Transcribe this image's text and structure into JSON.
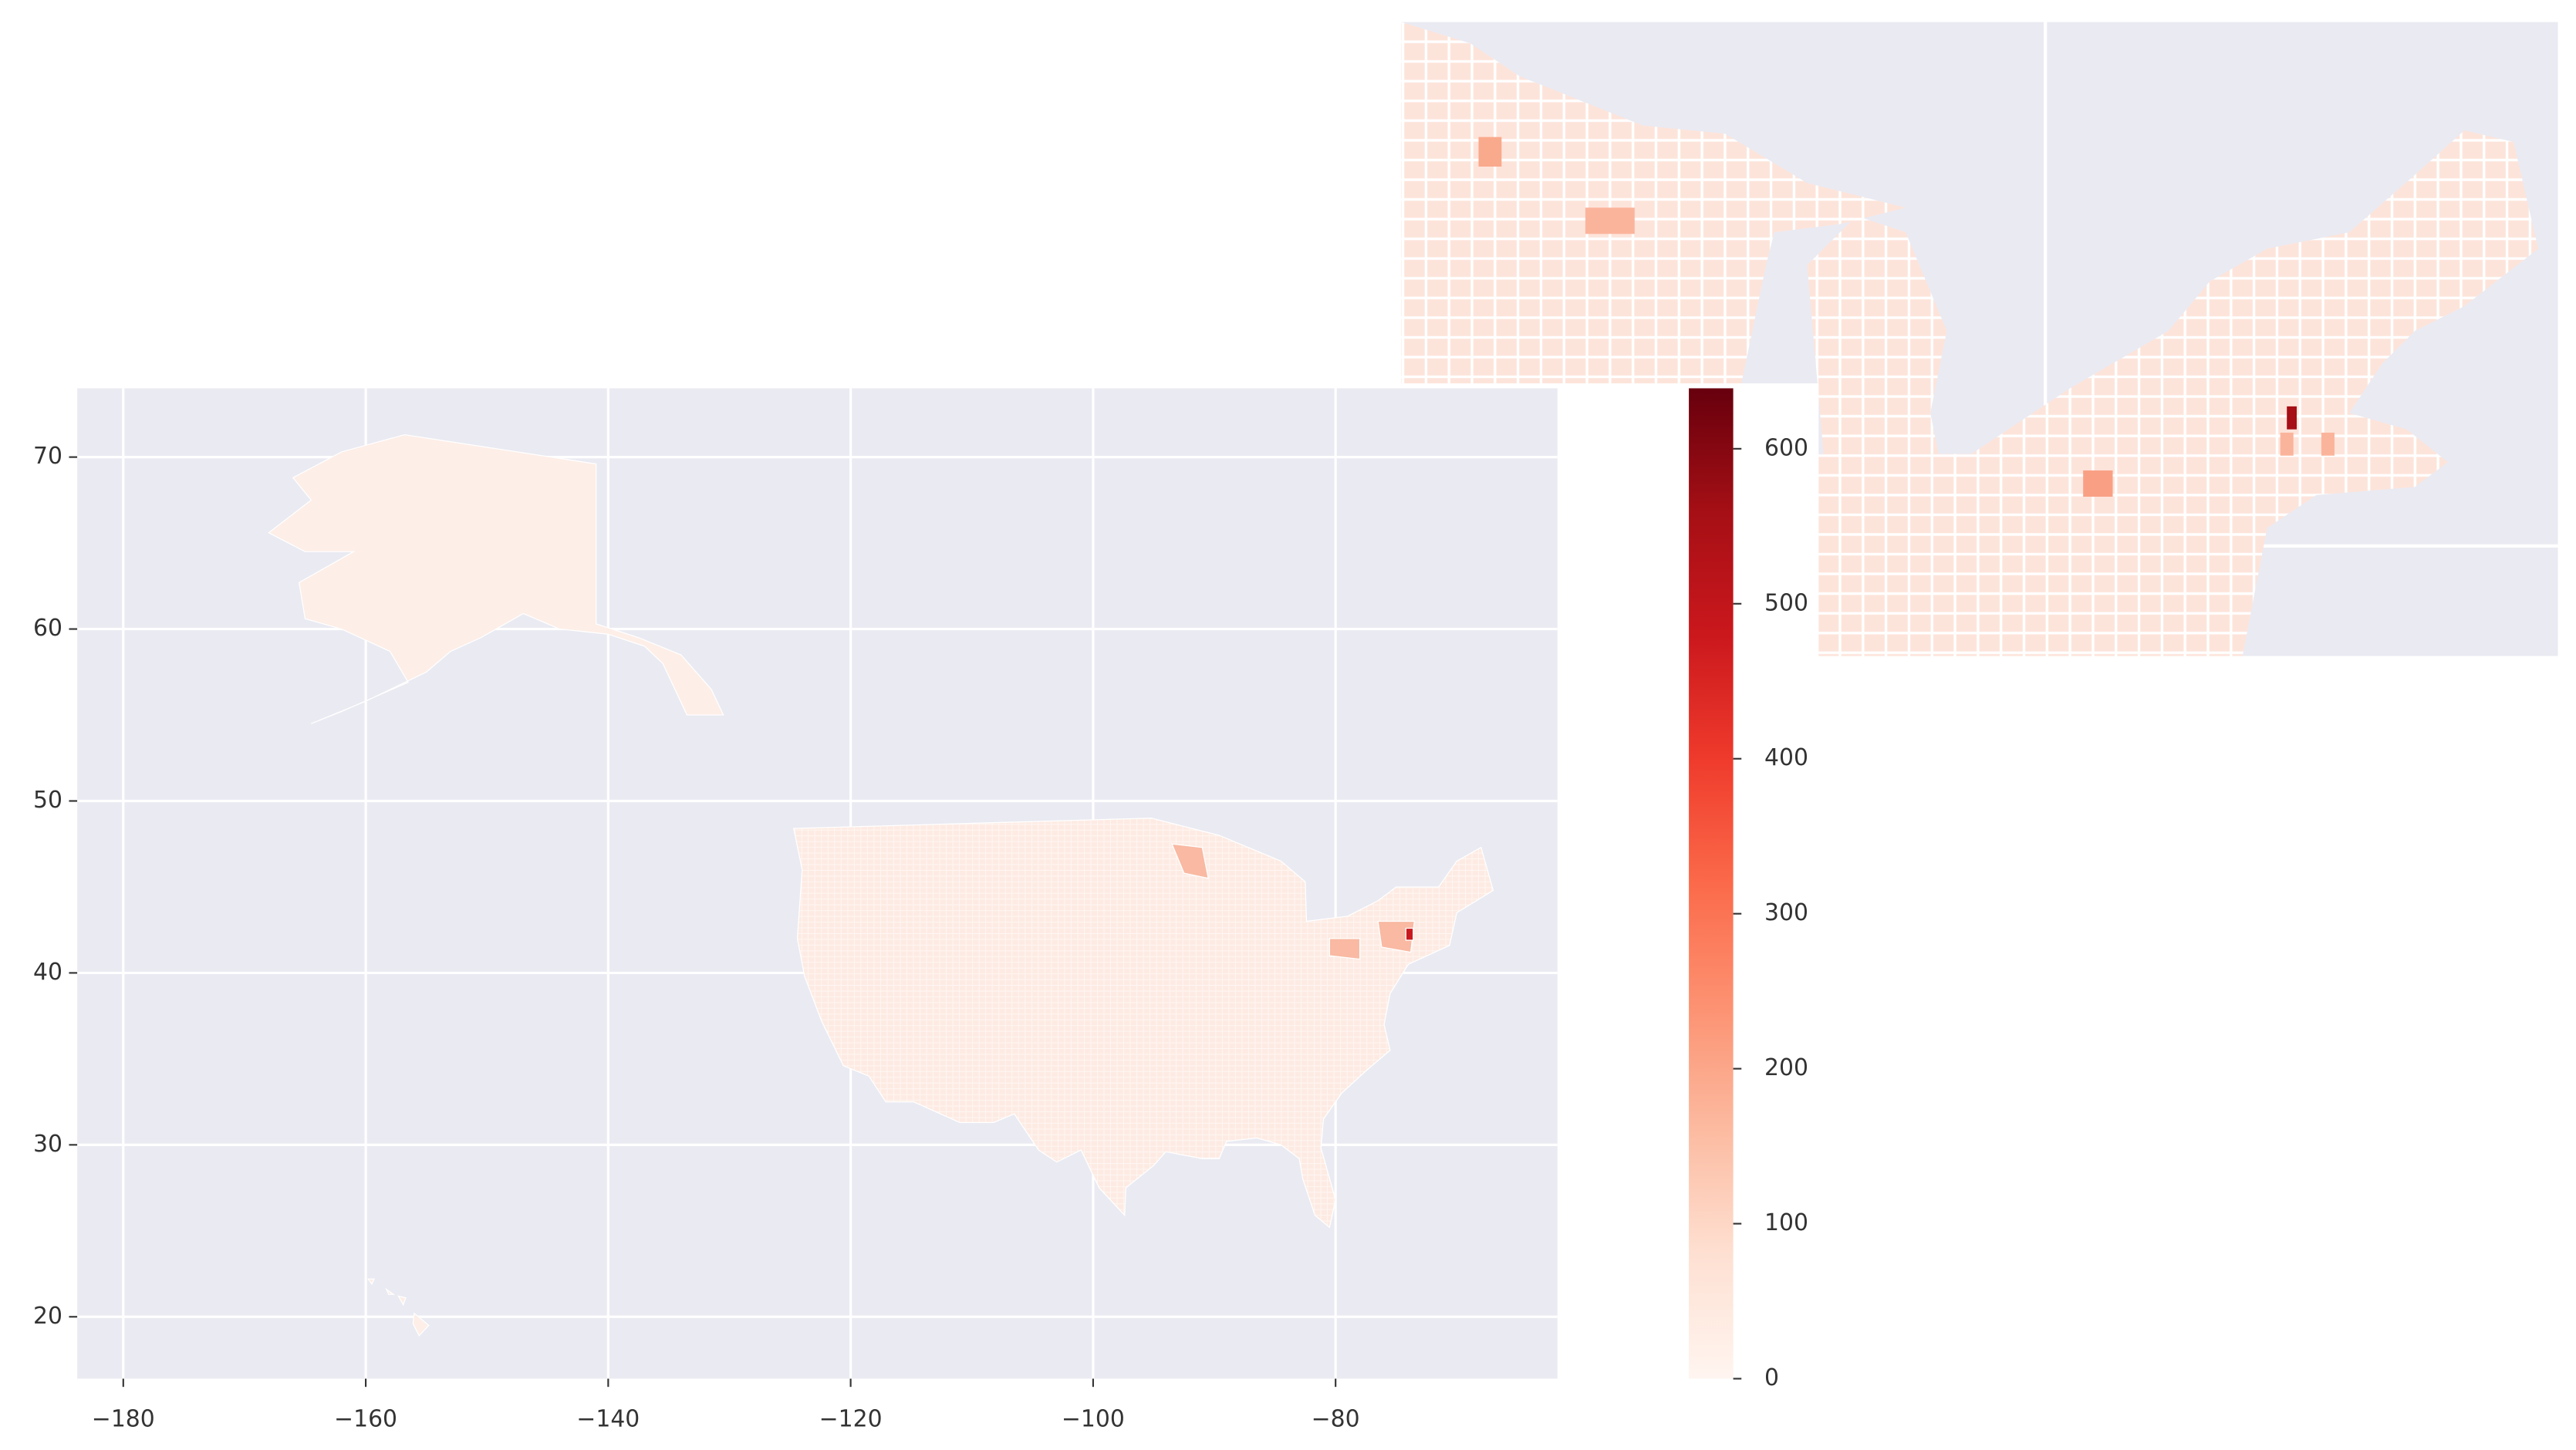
{
  "chart_data": {
    "type": "map",
    "xlim": [
      -183.8,
      -61.7
    ],
    "ylim": [
      16.4,
      74.0
    ],
    "xticks": [
      {
        "value": -180,
        "label": "−180"
      },
      {
        "value": -160,
        "label": "−160"
      },
      {
        "value": -140,
        "label": "−140"
      },
      {
        "value": -120,
        "label": "−120"
      },
      {
        "value": -100,
        "label": "−100"
      },
      {
        "value": -80,
        "label": "−80"
      }
    ],
    "yticks": [
      20,
      30,
      40,
      50,
      60,
      70
    ],
    "grid": true,
    "colorbar": {
      "cmap": "Reds",
      "clim": [
        0,
        639
      ],
      "ticks": [
        0,
        100,
        200,
        300,
        400,
        500,
        600
      ]
    }
  }
}
